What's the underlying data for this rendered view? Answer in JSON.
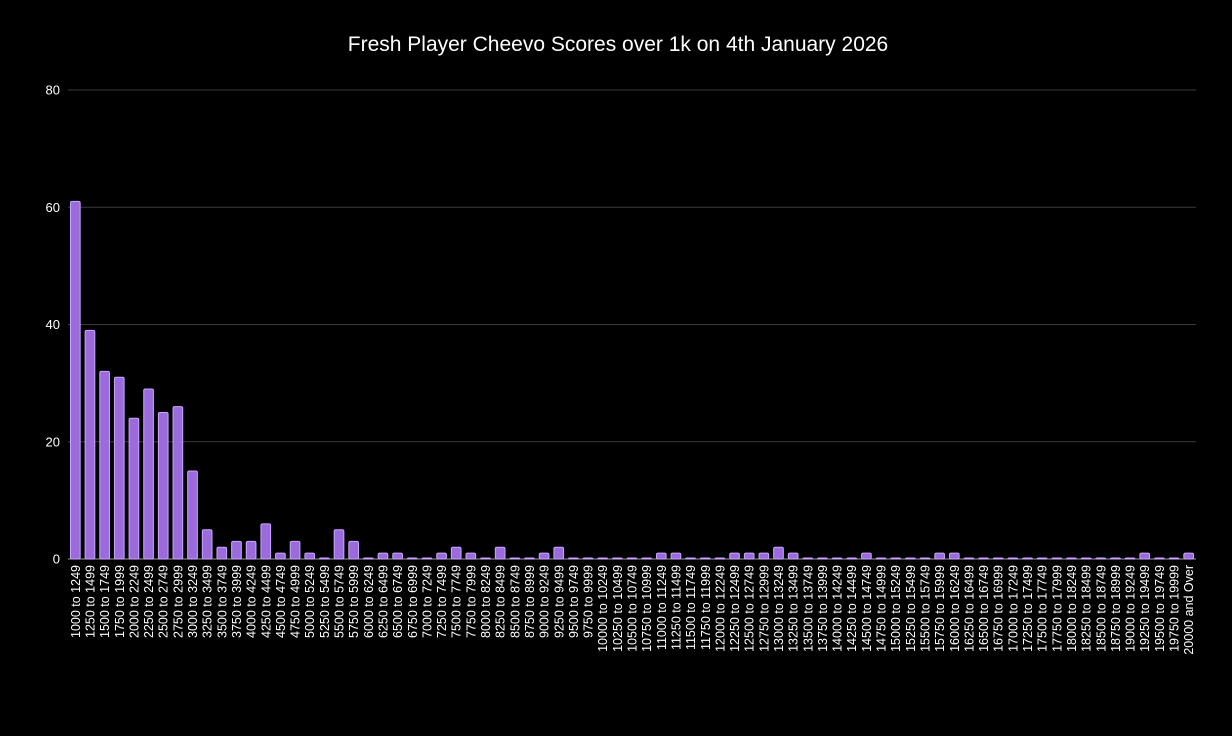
{
  "chart_data": {
    "type": "bar",
    "title": "Fresh Player Cheevo Scores over 1k on 4th January 2026",
    "xlabel": "",
    "ylabel": "",
    "ylim": [
      0,
      80
    ],
    "yticks": [
      0,
      20,
      40,
      60,
      80
    ],
    "grid": true,
    "colors": {
      "background": "#000000",
      "bar_fill": "#9b6bdc",
      "bar_outline": "#c9a6ff",
      "gridline": "#3a3a3a",
      "text": "#ffffff"
    },
    "categories": [
      "1000 to 1249",
      "1250 to 1499",
      "1500 to 1749",
      "1750 to 1999",
      "2000 to 2249",
      "2250 to 2499",
      "2500 to 2749",
      "2750 to 2999",
      "3000 to 3249",
      "3250 to 3499",
      "3500 to 3749",
      "3750 to 3999",
      "4000 to 4249",
      "4250 to 4499",
      "4500 to 4749",
      "4750 to 4999",
      "5000 to 5249",
      "5250 to 5499",
      "5500 to 5749",
      "5750 to 5999",
      "6000 to 6249",
      "6250 to 6499",
      "6500 to 6749",
      "6750 to 6999",
      "7000 to 7249",
      "7250 to 7499",
      "7500 to 7749",
      "7750 to 7999",
      "8000 to 8249",
      "8250 to 8499",
      "8500 to 8749",
      "8750 to 8999",
      "9000 to 9249",
      "9250 to 9499",
      "9500 to 9749",
      "9750 to 9999",
      "10000 to 10249",
      "10250 to 10499",
      "10500 to 10749",
      "10750 to 10999",
      "11000 to 11249",
      "11250 to 11499",
      "11500 to 11749",
      "11750 to 11999",
      "12000 to 12249",
      "12250 to 12499",
      "12500 to 12749",
      "12750 to 12999",
      "13000 to 13249",
      "13250 to 13499",
      "13500 to 13749",
      "13750 to 13999",
      "14000 to 14249",
      "14250 to 14499",
      "14500 to 14749",
      "14750 to 14999",
      "15000 to 15249",
      "15250 to 15499",
      "15500 to 15749",
      "15750 to 15999",
      "16000 to 16249",
      "16250 to 16499",
      "16500 to 16749",
      "16750 to 16999",
      "17000 to 17249",
      "17250 to 17499",
      "17500 to 17749",
      "17750 to 17999",
      "18000 to 18249",
      "18250 to 18499",
      "18500 to 18749",
      "18750 to 18999",
      "19000 to 19249",
      "19250 to 19499",
      "19500 to 19749",
      "19750 to 19999",
      "20000 and Over"
    ],
    "values": [
      61,
      39,
      32,
      31,
      24,
      29,
      25,
      26,
      15,
      5,
      2,
      3,
      3,
      6,
      1,
      3,
      1,
      0,
      5,
      3,
      0,
      1,
      1,
      0,
      0,
      1,
      2,
      1,
      0,
      2,
      0,
      0,
      1,
      2,
      0,
      0,
      0,
      0,
      0,
      0,
      1,
      1,
      0,
      0,
      0,
      1,
      1,
      1,
      2,
      1,
      0,
      0,
      0,
      0,
      1,
      0,
      0,
      0,
      0,
      1,
      1,
      0,
      0,
      0,
      0,
      0,
      0,
      0,
      0,
      0,
      0,
      0,
      0,
      1,
      0,
      0,
      1
    ]
  }
}
